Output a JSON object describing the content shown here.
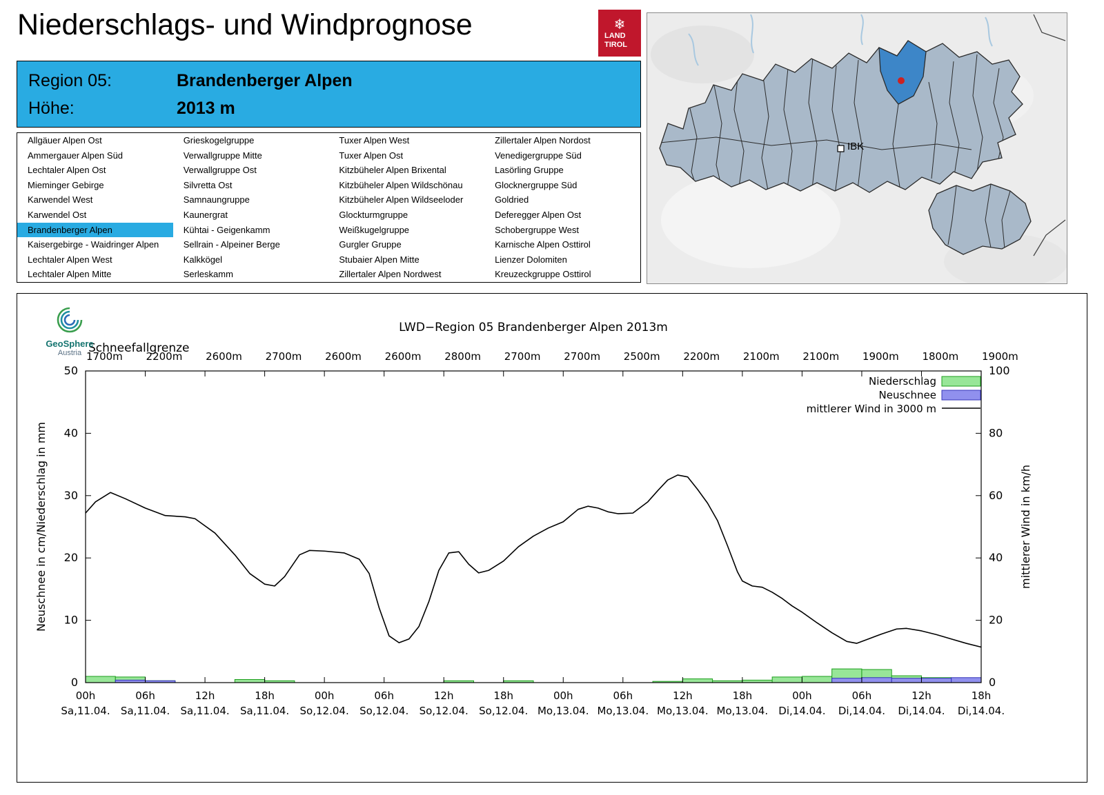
{
  "header": {
    "title": "Niederschlags- und Windprognose",
    "logo": {
      "snowflake": "❄",
      "line1": "LAND",
      "line2": "TIROL",
      "bg": "#c0172c"
    }
  },
  "region_info": {
    "region_label": "Region 05:",
    "region_value": "Brandenberger Alpen",
    "hoehe_label": "Höhe:",
    "hoehe_value": "2013 m",
    "bg": "#29abe2"
  },
  "map": {
    "ibk_label": "IBK",
    "region_fill": "#a9b9c9",
    "selected_fill": "#3d86c8",
    "marker_color": "#cc2222"
  },
  "region_list": {
    "selected": "Brandenberger Alpen",
    "selected_bg": "#29abe2",
    "columns": [
      [
        "Allgäuer Alpen Ost",
        "Ammergauer Alpen Süd",
        "Lechtaler Alpen Ost",
        "Mieminger Gebirge",
        "Karwendel West",
        "Karwendel Ost",
        "Brandenberger Alpen",
        "Kaisergebirge - Waidringer Alpen",
        "Lechtaler Alpen West",
        "Lechtaler Alpen Mitte"
      ],
      [
        "Grieskogelgruppe",
        "Verwallgruppe Mitte",
        "Verwallgruppe Ost",
        "Silvretta Ost",
        "Samnaungruppe",
        "Kaunergrat",
        "Kühtai - Geigenkamm",
        "Sellrain - Alpeiner Berge",
        "Kalkkögel",
        "Serleskamm"
      ],
      [
        "Tuxer Alpen West",
        "Tuxer Alpen Ost",
        "Kitzbüheler Alpen Brixental",
        "Kitzbüheler Alpen Wildschönau",
        "Kitzbüheler Alpen Wildseeloder",
        "Glockturmgruppe",
        "Weißkugelgruppe",
        "Gurgler Gruppe",
        "Stubaier Alpen Mitte",
        "Zillertaler Alpen Nordwest"
      ],
      [
        "Zillertaler Alpen Nordost",
        "Venedigergruppe Süd",
        "Lasörling Gruppe",
        "Glocknergruppe Süd",
        "Goldried",
        "Deferegger Alpen Ost",
        "Schobergruppe West",
        "Karnische Alpen Osttirol",
        "Lienzer Dolomiten",
        "Kreuzeckgruppe Osttirol"
      ]
    ]
  },
  "geosphere": {
    "name": "GeoSphere",
    "sub": "Austria"
  },
  "chart_data": {
    "type": "line+bar",
    "title": "LWD−Region 05 Brandenberger Alpen 2013m",
    "snowline_label": "Schneefallgrenze",
    "snowline_values": [
      "1700m",
      "2200m",
      "2600m",
      "2700m",
      "2600m",
      "2600m",
      "2800m",
      "2700m",
      "2700m",
      "2500m",
      "2200m",
      "2100m",
      "2100m",
      "1900m",
      "1800m",
      "1900m"
    ],
    "ylabel_left": "Neuschnee in cm/Niederschlag in mm",
    "ylabel_right": "mittlerer Wind in km/h",
    "ylim_left": [
      0,
      50
    ],
    "ylim_right": [
      0,
      100
    ],
    "yticks_left": [
      0,
      10,
      20,
      30,
      40,
      50
    ],
    "yticks_right": [
      0,
      20,
      40,
      60,
      80,
      100
    ],
    "x_hours_range": [
      0,
      90
    ],
    "x_ticks": [
      {
        "hour": 0,
        "time": "00h",
        "date": "Sa,11.04."
      },
      {
        "hour": 6,
        "time": "06h",
        "date": "Sa,11.04."
      },
      {
        "hour": 12,
        "time": "12h",
        "date": "Sa,11.04."
      },
      {
        "hour": 18,
        "time": "18h",
        "date": "Sa,11.04."
      },
      {
        "hour": 24,
        "time": "00h",
        "date": "So,12.04."
      },
      {
        "hour": 30,
        "time": "06h",
        "date": "So,12.04."
      },
      {
        "hour": 36,
        "time": "12h",
        "date": "So,12.04."
      },
      {
        "hour": 42,
        "time": "18h",
        "date": "So,12.04."
      },
      {
        "hour": 48,
        "time": "00h",
        "date": "Mo,13.04."
      },
      {
        "hour": 54,
        "time": "06h",
        "date": "Mo,13.04."
      },
      {
        "hour": 60,
        "time": "12h",
        "date": "Mo,13.04."
      },
      {
        "hour": 66,
        "time": "18h",
        "date": "Mo,13.04."
      },
      {
        "hour": 72,
        "time": "00h",
        "date": "Di,14.04."
      },
      {
        "hour": 78,
        "time": "06h",
        "date": "Di,14.04."
      },
      {
        "hour": 84,
        "time": "12h",
        "date": "Di,14.04."
      },
      {
        "hour": 90,
        "time": "18h",
        "date": "Di,14.04."
      }
    ],
    "series": {
      "niederschlag": {
        "name": "Niederschlag",
        "axis": "left",
        "unit": "mm",
        "fill": "#98e698",
        "stroke": "#1c9e1c",
        "bucket_hours": 3,
        "values": [
          1.0,
          0.9,
          0.3,
          0,
          0,
          0.5,
          0.3,
          0,
          0,
          0,
          0,
          0,
          0.3,
          0,
          0.3,
          0,
          0,
          0,
          0,
          0.2,
          0.6,
          0.3,
          0.4,
          0.9,
          1.0,
          2.2,
          2.1,
          1.1,
          0.8,
          0.7
        ]
      },
      "neuschnee": {
        "name": "Neuschnee",
        "axis": "left",
        "unit": "cm",
        "fill": "#9090ee",
        "stroke": "#3434b8",
        "bucket_hours": 3,
        "values": [
          0,
          0.4,
          0.3,
          0,
          0,
          0,
          0,
          0,
          0,
          0,
          0,
          0,
          0,
          0,
          0,
          0,
          0,
          0,
          0,
          0,
          0,
          0,
          0,
          0,
          0,
          0.7,
          0.8,
          0.7,
          0.7,
          0.8
        ]
      },
      "wind": {
        "name": "mittlerer Wind in 3000 m",
        "axis": "right",
        "unit": "km/h",
        "color": "#000000",
        "points": [
          [
            0,
            54.4
          ],
          [
            1,
            58
          ],
          [
            2.5,
            61
          ],
          [
            4,
            59
          ],
          [
            6,
            56
          ],
          [
            8,
            53.6
          ],
          [
            10,
            53.2
          ],
          [
            11,
            52.6
          ],
          [
            13,
            48
          ],
          [
            15,
            41
          ],
          [
            16.5,
            35
          ],
          [
            18,
            31.6
          ],
          [
            19,
            31
          ],
          [
            20,
            34
          ],
          [
            21.5,
            41
          ],
          [
            22.5,
            42.4
          ],
          [
            24,
            42.2
          ],
          [
            26,
            41.6
          ],
          [
            27.5,
            39.6
          ],
          [
            28.5,
            35
          ],
          [
            29.5,
            24
          ],
          [
            30.5,
            15
          ],
          [
            31.5,
            12.8
          ],
          [
            32.5,
            14
          ],
          [
            33.5,
            18
          ],
          [
            34.5,
            26
          ],
          [
            35.5,
            36
          ],
          [
            36.5,
            41.6
          ],
          [
            37.5,
            42
          ],
          [
            38.5,
            38
          ],
          [
            39.5,
            35.2
          ],
          [
            40.5,
            36
          ],
          [
            42,
            39
          ],
          [
            43.5,
            43.6
          ],
          [
            45,
            47
          ],
          [
            46.5,
            49.6
          ],
          [
            48,
            51.6
          ],
          [
            49.5,
            55.6
          ],
          [
            50.5,
            56.6
          ],
          [
            51.5,
            56
          ],
          [
            52.5,
            54.8
          ],
          [
            53.5,
            54.2
          ],
          [
            55,
            54.4
          ],
          [
            56.5,
            58
          ],
          [
            57.5,
            61.6
          ],
          [
            58.5,
            65
          ],
          [
            59.5,
            66.6
          ],
          [
            60.5,
            66
          ],
          [
            61.5,
            62
          ],
          [
            62.5,
            57.6
          ],
          [
            63.5,
            52
          ],
          [
            64.5,
            44
          ],
          [
            65.5,
            35.6
          ],
          [
            66,
            32.6
          ],
          [
            67,
            31
          ],
          [
            68,
            30.6
          ],
          [
            69,
            29
          ],
          [
            70,
            27
          ],
          [
            71,
            24.6
          ],
          [
            72,
            22.6
          ],
          [
            73.5,
            19.2
          ],
          [
            75,
            16
          ],
          [
            76.5,
            13.2
          ],
          [
            77.5,
            12.6
          ],
          [
            78.5,
            13.8
          ],
          [
            80,
            15.6
          ],
          [
            81.5,
            17.2
          ],
          [
            82.5,
            17.4
          ],
          [
            84,
            16.6
          ],
          [
            85.5,
            15.4
          ],
          [
            87,
            14
          ],
          [
            88.5,
            12.6
          ],
          [
            90,
            11.4
          ]
        ]
      }
    },
    "legend_position": "top-right",
    "grid": false
  }
}
